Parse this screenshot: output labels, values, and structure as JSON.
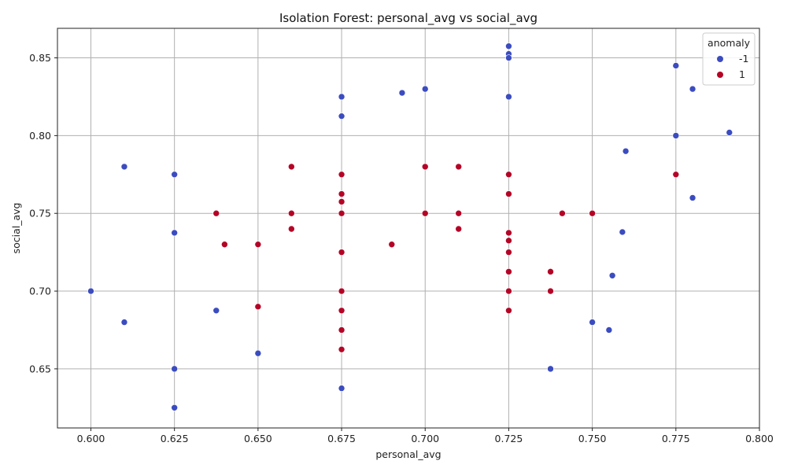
{
  "chart_data": {
    "type": "scatter",
    "title": "Isolation Forest: personal_avg vs social_avg",
    "xlabel": "personal_avg",
    "ylabel": "social_avg",
    "xlim": [
      0.59,
      0.8
    ],
    "ylim": [
      0.612,
      0.869
    ],
    "xticks": [
      0.6,
      0.625,
      0.65,
      0.675,
      0.7,
      0.725,
      0.75,
      0.775,
      0.8
    ],
    "xtick_labels": [
      "0.600",
      "0.625",
      "0.650",
      "0.675",
      "0.700",
      "0.725",
      "0.750",
      "0.775",
      "0.800"
    ],
    "yticks": [
      0.65,
      0.7,
      0.75,
      0.8,
      0.85
    ],
    "ytick_labels": [
      "0.65",
      "0.70",
      "0.75",
      "0.80",
      "0.85"
    ],
    "grid": true,
    "legend": {
      "title": "anomaly",
      "placement": "top-right",
      "entries": [
        {
          "label": "-1",
          "color": "#3b4cc0"
        },
        {
          "label": "1",
          "color": "#b40426"
        }
      ]
    },
    "series": [
      {
        "name": "-1",
        "color": "#3b4cc0",
        "points": [
          [
            0.6,
            0.7
          ],
          [
            0.61,
            0.78
          ],
          [
            0.61,
            0.68
          ],
          [
            0.625,
            0.775
          ],
          [
            0.625,
            0.7375
          ],
          [
            0.625,
            0.65
          ],
          [
            0.625,
            0.625
          ],
          [
            0.6375,
            0.6875
          ],
          [
            0.65,
            0.66
          ],
          [
            0.675,
            0.825
          ],
          [
            0.675,
            0.8125
          ],
          [
            0.675,
            0.6375
          ],
          [
            0.6931,
            0.8275
          ],
          [
            0.7,
            0.83
          ],
          [
            0.725,
            0.8575
          ],
          [
            0.725,
            0.8525
          ],
          [
            0.725,
            0.85
          ],
          [
            0.725,
            0.825
          ],
          [
            0.7375,
            0.65
          ],
          [
            0.75,
            0.68
          ],
          [
            0.755,
            0.675
          ],
          [
            0.756,
            0.71
          ],
          [
            0.759,
            0.738
          ],
          [
            0.76,
            0.79
          ],
          [
            0.775,
            0.845
          ],
          [
            0.775,
            0.8
          ],
          [
            0.78,
            0.83
          ],
          [
            0.78,
            0.76
          ],
          [
            0.791,
            0.802
          ]
        ]
      },
      {
        "name": "1",
        "color": "#b40426",
        "points": [
          [
            0.6375,
            0.75
          ],
          [
            0.64,
            0.73
          ],
          [
            0.65,
            0.73
          ],
          [
            0.65,
            0.69
          ],
          [
            0.66,
            0.78
          ],
          [
            0.66,
            0.75
          ],
          [
            0.66,
            0.74
          ],
          [
            0.675,
            0.775
          ],
          [
            0.675,
            0.7625
          ],
          [
            0.675,
            0.7575
          ],
          [
            0.675,
            0.75
          ],
          [
            0.675,
            0.725
          ],
          [
            0.675,
            0.7
          ],
          [
            0.675,
            0.6875
          ],
          [
            0.675,
            0.675
          ],
          [
            0.675,
            0.6625
          ],
          [
            0.69,
            0.73
          ],
          [
            0.7,
            0.78
          ],
          [
            0.7,
            0.75
          ],
          [
            0.71,
            0.78
          ],
          [
            0.71,
            0.75
          ],
          [
            0.71,
            0.74
          ],
          [
            0.725,
            0.775
          ],
          [
            0.725,
            0.7625
          ],
          [
            0.725,
            0.7375
          ],
          [
            0.725,
            0.7325
          ],
          [
            0.725,
            0.725
          ],
          [
            0.725,
            0.7125
          ],
          [
            0.725,
            0.7
          ],
          [
            0.725,
            0.6875
          ],
          [
            0.7375,
            0.7125
          ],
          [
            0.7375,
            0.7
          ],
          [
            0.741,
            0.75
          ],
          [
            0.75,
            0.75
          ],
          [
            0.775,
            0.775
          ]
        ]
      }
    ]
  }
}
